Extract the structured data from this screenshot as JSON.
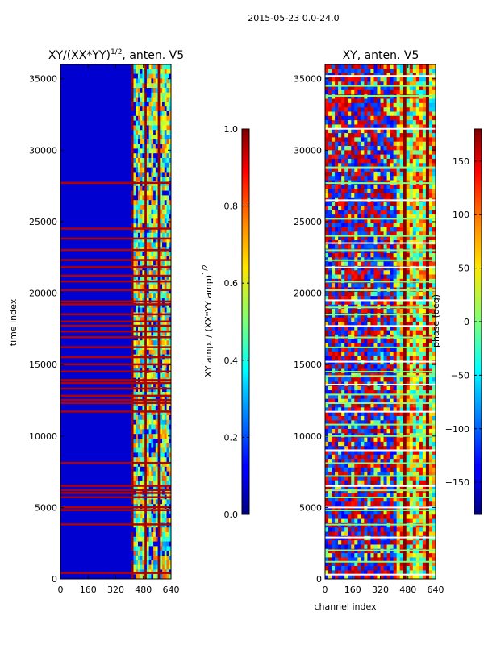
{
  "figure": {
    "suptitle": "2015-05-23 0.0-24.0"
  },
  "chart_data": [
    {
      "type": "heatmap",
      "title_prefix": "XY/(XX*YY)",
      "title_exponent": "1/2",
      "title_suffix": ", anten. V5",
      "xlabel": "",
      "ylabel": "time index",
      "x_ticks": [
        0,
        160,
        320,
        480,
        640
      ],
      "y_ticks": [
        0,
        5000,
        10000,
        15000,
        20000,
        25000,
        30000,
        35000
      ],
      "xlim": [
        0,
        640
      ],
      "ylim": [
        0,
        36000
      ],
      "colormap": "jet",
      "colorbar": {
        "label": "XY amp. / (XX*YY amp)",
        "label_exponent": "1/2",
        "ticks": [
          "0.0",
          "0.2",
          "0.4",
          "0.6",
          "0.8",
          "1.0"
        ],
        "tick_values": [
          0.0,
          0.2,
          0.4,
          0.6,
          0.8,
          1.0
        ],
        "range": [
          0.0,
          1.0
        ]
      },
      "background_value": 0.08,
      "bright_band_channels": [
        410,
        640
      ],
      "flagged_rows_value": 0.95,
      "flagged_rows": [
        400,
        3800,
        4800,
        5000,
        5700,
        6000,
        6200,
        6500,
        8100,
        11700,
        12300,
        12500,
        12800,
        13300,
        13700,
        13900,
        14500,
        15000,
        15500,
        16200,
        16900,
        17300,
        17700,
        18000,
        18500,
        19200,
        19400,
        20200,
        20800,
        21200,
        21800,
        22300,
        23000,
        23800,
        24500,
        27700
      ]
    },
    {
      "type": "heatmap",
      "title": "XY, anten. V5",
      "xlabel": "channel index",
      "ylabel": "",
      "x_ticks": [
        0,
        160,
        320,
        480,
        640
      ],
      "y_ticks": [
        0,
        5000,
        10000,
        15000,
        20000,
        25000,
        30000,
        35000
      ],
      "xlim": [
        0,
        640
      ],
      "ylim": [
        0,
        36000
      ],
      "colormap": "jet",
      "colorbar": {
        "label": "phase (deg)",
        "ticks": [
          "−150",
          "−100",
          "−50",
          "0",
          "50",
          "100",
          "150"
        ],
        "tick_values": [
          -150,
          -100,
          -50,
          0,
          50,
          100,
          150
        ],
        "range": [
          -180,
          180
        ]
      },
      "flagged_rows_value": 0.5,
      "flagged_rows": [
        300,
        1200,
        2000,
        2900,
        3800,
        4800,
        5000,
        5700,
        6200,
        6500,
        7200,
        8100,
        9000,
        10000,
        10800,
        11700,
        12300,
        12900,
        13600,
        14200,
        14500,
        15200,
        16200,
        16900,
        17700,
        18500,
        19000,
        19500,
        20200,
        20800,
        21800,
        22300,
        23000,
        23500,
        24000,
        25200,
        26500,
        27700,
        28800,
        31500,
        33800,
        34500,
        35200
      ]
    }
  ]
}
